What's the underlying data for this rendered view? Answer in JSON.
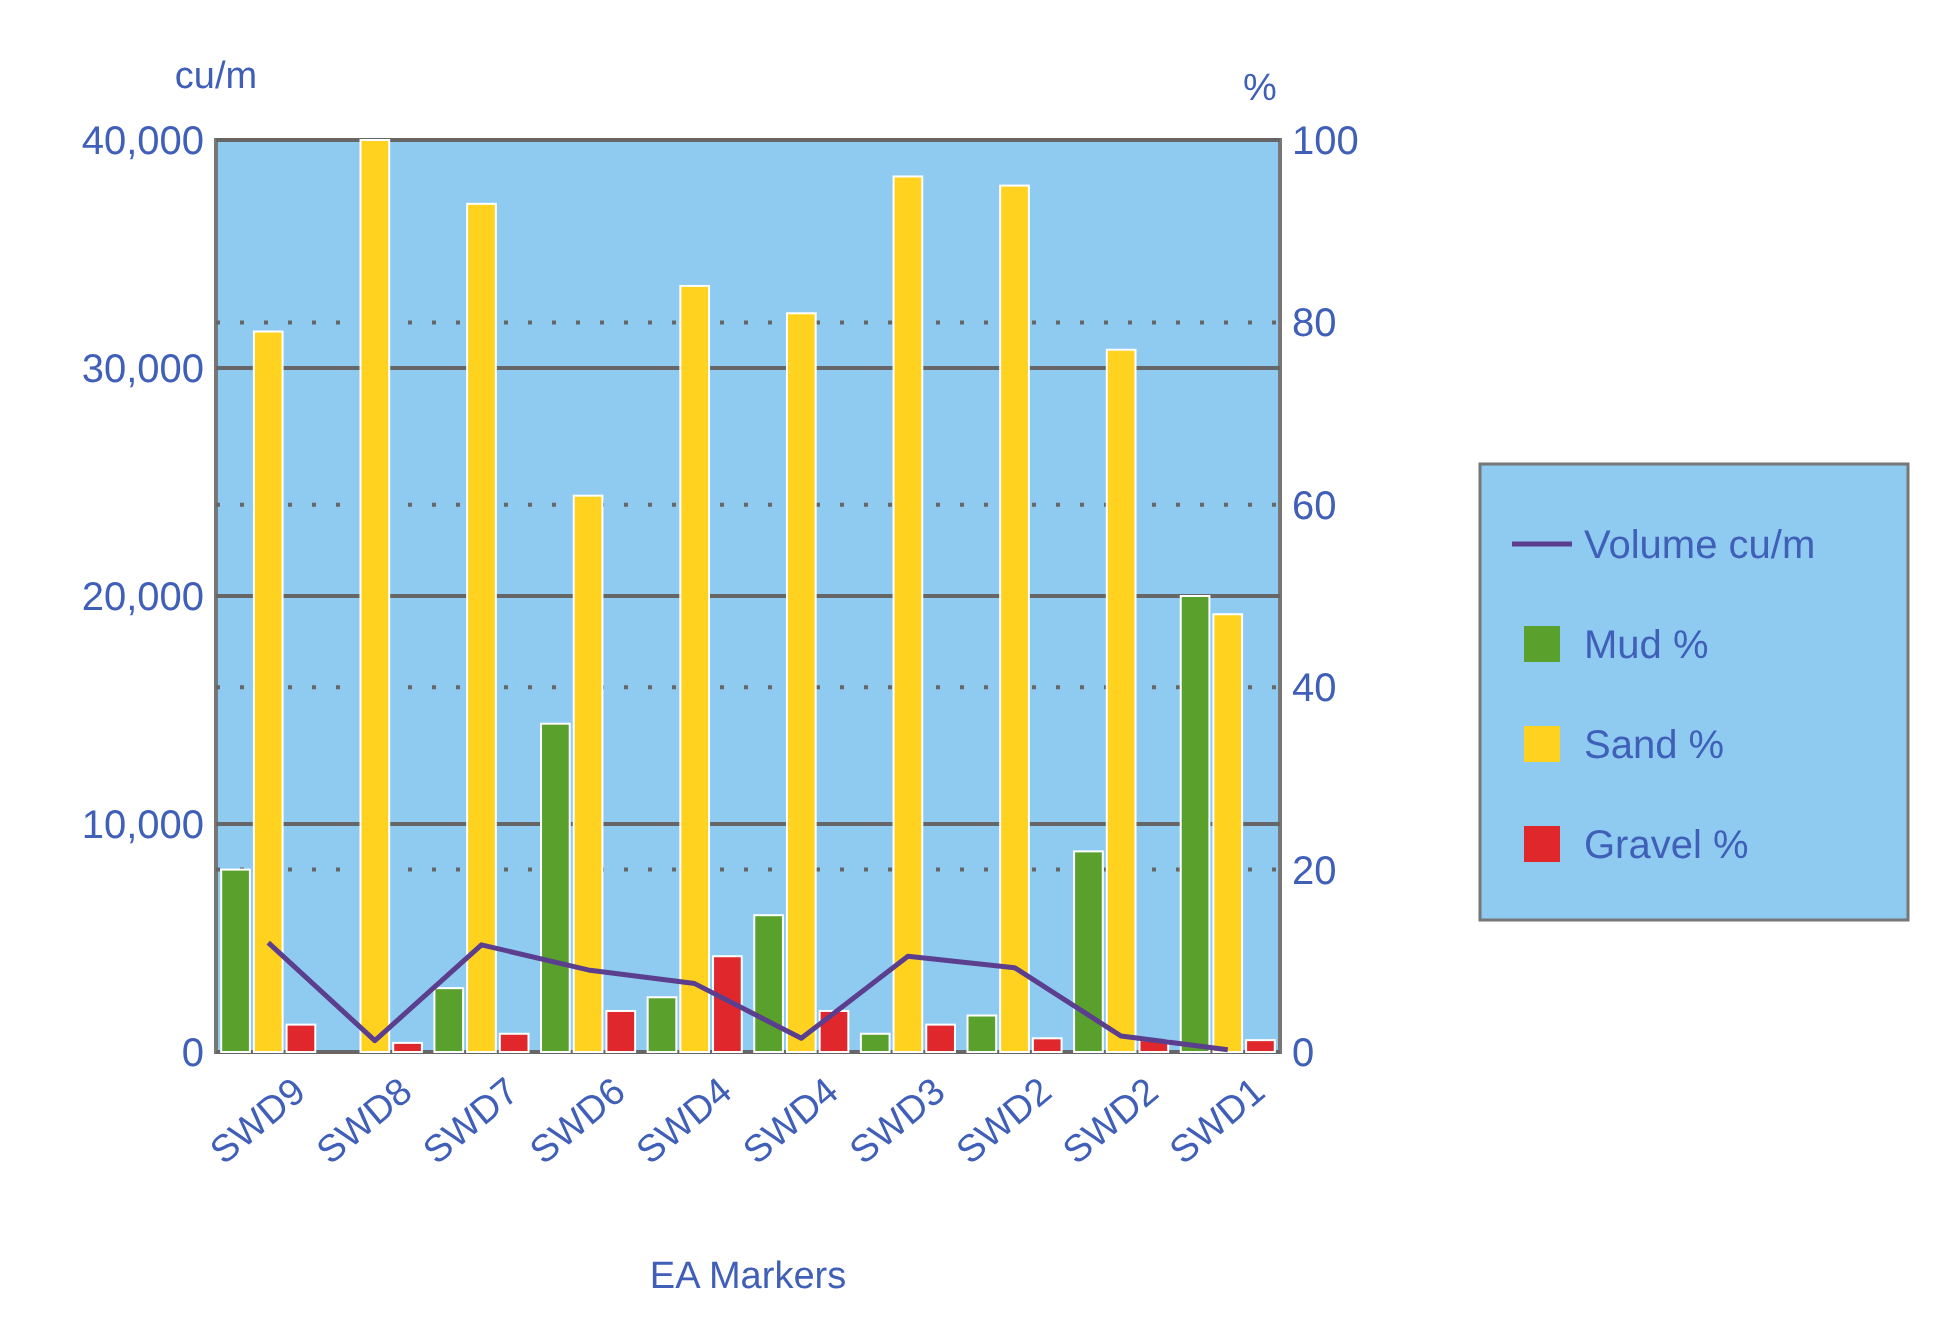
{
  "chart_data": {
    "type": "bar",
    "xlabel": "EA Markers",
    "ylabel": "cu/m",
    "y2label": "%",
    "categories": [
      "SWD9",
      "SWD8",
      "SWD7",
      "SWD6",
      "SWD4",
      "SWD4",
      "SWD3",
      "SWD2",
      "SWD2",
      "SWD1"
    ],
    "series": [
      {
        "name": "Volume cu/m",
        "type": "line",
        "color": "#5b3f8e",
        "values": [
          4800,
          500,
          4700,
          3600,
          3000,
          600,
          4200,
          3700,
          700,
          100
        ]
      },
      {
        "name": "Mud %",
        "color": "#5aa02c",
        "axis": "y2",
        "values": [
          20,
          0,
          7,
          36,
          6,
          15,
          2,
          4,
          22,
          50
        ]
      },
      {
        "name": "Sand %",
        "color": "#ffd21f",
        "axis": "y2",
        "values": [
          79,
          100,
          93,
          61,
          84,
          81,
          96,
          95,
          77,
          48
        ]
      },
      {
        "name": "Gravel %",
        "color": "#e0282c",
        "axis": "y2",
        "values": [
          3,
          1,
          2,
          4.5,
          10.5,
          4.5,
          3,
          1.5,
          1.3,
          1.3
        ]
      }
    ],
    "ylim": [
      0,
      40000
    ],
    "yticks": [
      {
        "value": 0,
        "label": "0"
      },
      {
        "value": 10000,
        "label": "10,000"
      },
      {
        "value": 20000,
        "label": "20,000"
      },
      {
        "value": 30000,
        "label": "30,000"
      },
      {
        "value": 40000,
        "label": "40,000"
      }
    ],
    "y2lim": [
      0,
      100
    ],
    "y2ticks": [
      0,
      20,
      40,
      60,
      80,
      100
    ],
    "grid": true,
    "legend": "right"
  }
}
